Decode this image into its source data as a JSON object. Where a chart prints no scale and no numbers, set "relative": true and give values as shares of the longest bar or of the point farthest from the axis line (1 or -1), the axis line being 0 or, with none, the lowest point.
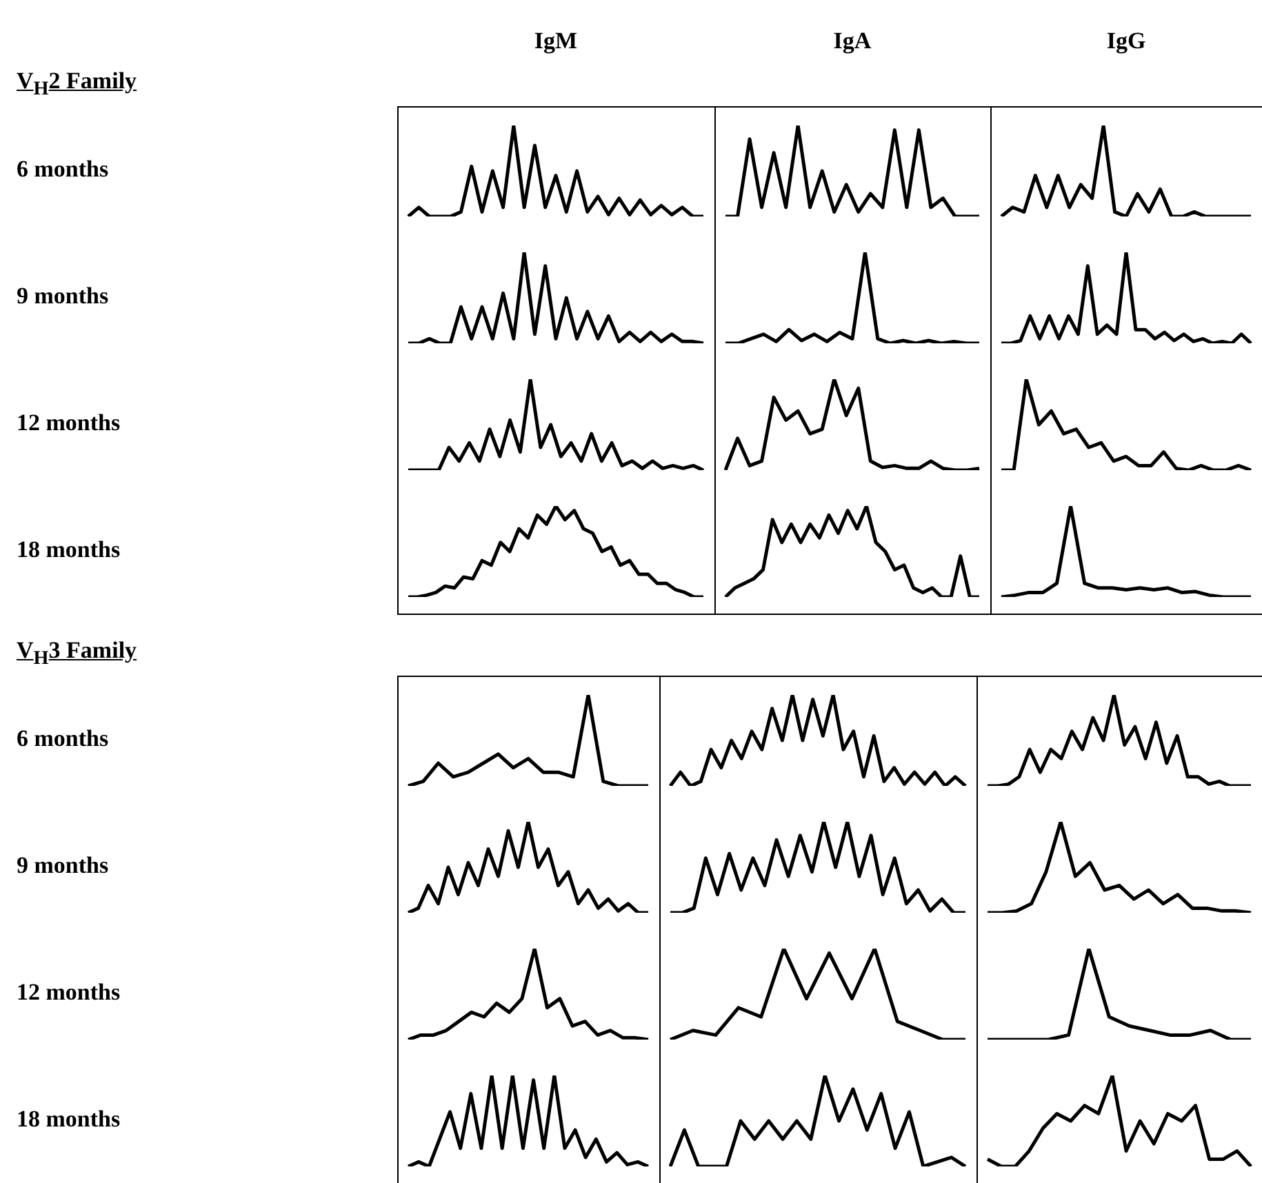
{
  "chart_data": [
    {
      "type": "line",
      "relative": true,
      "title": "IgM",
      "ylabel": "6 months",
      "annotations": [
        "V$_{H}$2 Family"
      ],
      "color": "#000000",
      "categories": [
        null,
        null,
        null,
        null,
        null,
        null,
        null,
        null,
        null,
        null,
        null,
        null,
        null,
        null,
        null,
        null,
        null,
        null,
        null,
        null,
        null,
        null,
        null,
        null,
        null,
        null,
        null,
        null,
        null
      ],
      "values": [
        0,
        0.1,
        0,
        0,
        0,
        0.05,
        0.55,
        0.05,
        0.5,
        0.1,
        1,
        0.1,
        0.78,
        0.1,
        0.45,
        0.05,
        0.5,
        0.05,
        0.22,
        0.02,
        0.2,
        0.02,
        0.18,
        0.02,
        0.12,
        0.02,
        0.1,
        0,
        0
      ]
    },
    {
      "type": "line",
      "relative": true,
      "title": "IgA",
      "color": "#000000",
      "categories": [
        null,
        null,
        null,
        null,
        null,
        null,
        null,
        null,
        null,
        null,
        null,
        null,
        null,
        null,
        null,
        null,
        null,
        null,
        null,
        null,
        null,
        null
      ],
      "values": [
        0,
        0,
        0.85,
        0.1,
        0.7,
        0.1,
        1,
        0.1,
        0.5,
        0.05,
        0.35,
        0.05,
        0.25,
        0.1,
        0.95,
        0.1,
        0.95,
        0.1,
        0.2,
        0,
        0,
        0
      ]
    },
    {
      "type": "line",
      "relative": true,
      "title": "IgG",
      "color": "#000000",
      "categories": [
        null,
        null,
        null,
        null,
        null,
        null,
        null,
        null,
        null,
        null,
        null,
        null,
        null,
        null,
        null,
        null,
        null,
        null,
        null,
        null,
        null,
        null,
        null
      ],
      "values": [
        0,
        0.1,
        0.05,
        0.45,
        0.1,
        0.45,
        0.1,
        0.35,
        0.2,
        1,
        0.05,
        0,
        0.25,
        0.05,
        0.3,
        0,
        0,
        0.05,
        0,
        0,
        0,
        0,
        0
      ]
    },
    {
      "type": "line",
      "relative": true,
      "ylabel": "9 months",
      "color": "#000000",
      "categories": [
        null,
        null,
        null,
        null,
        null,
        null,
        null,
        null,
        null,
        null,
        null,
        null,
        null,
        null,
        null,
        null,
        null,
        null,
        null,
        null,
        null,
        null,
        null,
        null,
        null,
        null,
        null,
        null,
        null
      ],
      "values": [
        0,
        0,
        0.05,
        0,
        0,
        0.4,
        0.05,
        0.4,
        0.05,
        0.55,
        0.05,
        1,
        0.1,
        0.85,
        0.05,
        0.5,
        0.05,
        0.35,
        0.05,
        0.3,
        0.02,
        0.12,
        0.02,
        0.12,
        0.02,
        0.1,
        0.02,
        0.02,
        0
      ]
    },
    {
      "type": "line",
      "relative": true,
      "color": "#000000",
      "categories": [
        null,
        null,
        null,
        null,
        null,
        null,
        null,
        null,
        null,
        null,
        null,
        null,
        null,
        null,
        null,
        null,
        null,
        null,
        null,
        null,
        null
      ],
      "values": [
        0,
        0,
        0.05,
        0.1,
        0.02,
        0.15,
        0.03,
        0.1,
        0.02,
        0.12,
        0.05,
        1,
        0.05,
        0,
        0.03,
        0,
        0.03,
        0,
        0.02,
        0,
        0
      ]
    },
    {
      "type": "line",
      "relative": true,
      "color": "#000000",
      "categories": [
        null,
        null,
        null,
        null,
        null,
        null,
        null,
        null,
        null,
        null,
        null,
        null,
        null,
        null,
        null,
        null,
        null,
        null,
        null,
        null,
        null,
        null,
        null,
        null,
        null,
        null,
        null
      ],
      "values": [
        0,
        0,
        0.03,
        0.3,
        0.05,
        0.3,
        0.05,
        0.3,
        0.1,
        0.85,
        0.1,
        0.2,
        0.1,
        1,
        0.15,
        0.15,
        0.05,
        0.12,
        0.03,
        0.1,
        0.02,
        0.05,
        0,
        0.02,
        0,
        0.1,
        0
      ]
    },
    {
      "type": "line",
      "relative": true,
      "ylabel": "12 months",
      "color": "#000000",
      "categories": [
        null,
        null,
        null,
        null,
        null,
        null,
        null,
        null,
        null,
        null,
        null,
        null,
        null,
        null,
        null,
        null,
        null,
        null,
        null,
        null,
        null,
        null,
        null,
        null,
        null,
        null,
        null,
        null,
        null,
        null
      ],
      "values": [
        0,
        0,
        0,
        0,
        0.25,
        0.1,
        0.3,
        0.1,
        0.45,
        0.15,
        0.55,
        0.2,
        1,
        0.25,
        0.5,
        0.15,
        0.3,
        0.1,
        0.4,
        0.1,
        0.3,
        0.05,
        0.1,
        0.02,
        0.1,
        0.02,
        0.05,
        0.02,
        0.05,
        0
      ]
    },
    {
      "type": "line",
      "relative": true,
      "color": "#000000",
      "categories": [
        null,
        null,
        null,
        null,
        null,
        null,
        null,
        null,
        null,
        null,
        null,
        null,
        null,
        null,
        null,
        null,
        null,
        null,
        null,
        null,
        null,
        null
      ],
      "values": [
        0,
        0.35,
        0.05,
        0.1,
        0.8,
        0.55,
        0.65,
        0.4,
        0.45,
        1,
        0.6,
        0.9,
        0.1,
        0.03,
        0.05,
        0.02,
        0.02,
        0.1,
        0.02,
        0,
        0,
        0.02
      ]
    },
    {
      "type": "line",
      "relative": true,
      "color": "#000000",
      "categories": [
        null,
        null,
        null,
        null,
        null,
        null,
        null,
        null,
        null,
        null,
        null,
        null,
        null,
        null,
        null,
        null,
        null,
        null,
        null,
        null,
        null
      ],
      "values": [
        0,
        0,
        1,
        0.5,
        0.65,
        0.4,
        0.45,
        0.25,
        0.3,
        0.1,
        0.15,
        0.05,
        0.05,
        0.2,
        0.02,
        0,
        0.05,
        0,
        0,
        0.05,
        0
      ]
    },
    {
      "type": "line",
      "relative": true,
      "ylabel": "18 months",
      "color": "#000000",
      "categories": [
        null,
        null,
        null,
        null,
        null,
        null,
        null,
        null,
        null,
        null,
        null,
        null,
        null,
        null,
        null,
        null,
        null,
        null,
        null,
        null,
        null,
        null,
        null,
        null,
        null,
        null,
        null,
        null,
        null,
        null,
        null,
        null,
        null
      ],
      "values": [
        0,
        0,
        0.02,
        0.05,
        0.12,
        0.1,
        0.22,
        0.2,
        0.4,
        0.35,
        0.6,
        0.5,
        0.75,
        0.65,
        0.9,
        0.8,
        1,
        0.85,
        0.95,
        0.75,
        0.7,
        0.5,
        0.55,
        0.35,
        0.4,
        0.25,
        0.25,
        0.15,
        0.15,
        0.08,
        0.05,
        0,
        0
      ]
    },
    {
      "type": "line",
      "relative": true,
      "color": "#000000",
      "categories": [
        null,
        null,
        null,
        null,
        null,
        null,
        null,
        null,
        null,
        null,
        null,
        null,
        null,
        null,
        null,
        null,
        null,
        null,
        null,
        null,
        null,
        null,
        null,
        null,
        null,
        null,
        null,
        null
      ],
      "values": [
        0,
        0.1,
        0.15,
        0.2,
        0.3,
        0.85,
        0.6,
        0.8,
        0.6,
        0.8,
        0.65,
        0.9,
        0.7,
        0.95,
        0.75,
        1,
        0.6,
        0.5,
        0.3,
        0.35,
        0.1,
        0.05,
        0.1,
        0,
        0,
        0.45,
        0,
        0
      ]
    },
    {
      "type": "line",
      "relative": true,
      "color": "#000000",
      "categories": [
        null,
        null,
        null,
        null,
        null,
        null,
        null,
        null,
        null,
        null,
        null,
        null,
        null,
        null,
        null,
        null,
        null,
        null,
        null
      ],
      "values": [
        0,
        0.02,
        0.05,
        0.05,
        0.15,
        1,
        0.15,
        0.1,
        0.1,
        0.08,
        0.1,
        0.08,
        0.1,
        0.05,
        0.06,
        0.02,
        0,
        0,
        0
      ]
    },
    {
      "type": "line",
      "relative": true,
      "ylabel": "6 months",
      "annotations": [
        "V$_{H}$3 Family"
      ],
      "color": "#000000",
      "categories": [
        null,
        null,
        null,
        null,
        null,
        null,
        null,
        null,
        null,
        null,
        null,
        null,
        null,
        null,
        null,
        null,
        null
      ],
      "values": [
        0,
        0.05,
        0.25,
        0.1,
        0.15,
        0.25,
        0.35,
        0.2,
        0.3,
        0.15,
        0.15,
        0.1,
        1,
        0.05,
        0,
        0,
        0
      ]
    },
    {
      "type": "line",
      "relative": true,
      "color": "#000000",
      "categories": [
        null,
        null,
        null,
        null,
        null,
        null,
        null,
        null,
        null,
        null,
        null,
        null,
        null,
        null,
        null,
        null,
        null,
        null,
        null,
        null,
        null,
        null,
        null,
        null,
        null,
        null,
        null,
        null,
        null,
        null
      ],
      "values": [
        0,
        0.15,
        0,
        0.05,
        0.4,
        0.2,
        0.5,
        0.3,
        0.6,
        0.4,
        0.85,
        0.5,
        1,
        0.5,
        0.95,
        0.55,
        1,
        0.4,
        0.6,
        0.1,
        0.55,
        0.05,
        0.2,
        0.02,
        0.15,
        0.02,
        0.15,
        0,
        0.1,
        0
      ]
    },
    {
      "type": "line",
      "relative": true,
      "color": "#000000",
      "categories": [
        null,
        null,
        null,
        null,
        null,
        null,
        null,
        null,
        null,
        null,
        null,
        null,
        null,
        null,
        null,
        null,
        null,
        null,
        null,
        null,
        null,
        null,
        null,
        null,
        null,
        null
      ],
      "values": [
        0,
        0,
        0.02,
        0.1,
        0.4,
        0.15,
        0.4,
        0.3,
        0.6,
        0.4,
        0.75,
        0.5,
        1,
        0.45,
        0.65,
        0.3,
        0.7,
        0.25,
        0.55,
        0.1,
        0.1,
        0.02,
        0.05,
        0,
        0,
        0
      ]
    },
    {
      "type": "line",
      "relative": true,
      "ylabel": "9 months",
      "color": "#000000",
      "categories": [
        null,
        null,
        null,
        null,
        null,
        null,
        null,
        null,
        null,
        null,
        null,
        null,
        null,
        null,
        null,
        null,
        null,
        null,
        null,
        null,
        null,
        null,
        null,
        null,
        null
      ],
      "values": [
        0,
        0.05,
        0.3,
        0.1,
        0.5,
        0.2,
        0.55,
        0.3,
        0.7,
        0.4,
        0.9,
        0.5,
        1,
        0.5,
        0.7,
        0.3,
        0.45,
        0.1,
        0.25,
        0.05,
        0.15,
        0.02,
        0.1,
        0,
        0
      ]
    },
    {
      "type": "line",
      "relative": true,
      "color": "#000000",
      "categories": [
        null,
        null,
        null,
        null,
        null,
        null,
        null,
        null,
        null,
        null,
        null,
        null,
        null,
        null,
        null,
        null,
        null,
        null,
        null,
        null,
        null,
        null,
        null,
        null,
        null,
        null
      ],
      "values": [
        0,
        0,
        0.05,
        0.6,
        0.2,
        0.65,
        0.25,
        0.6,
        0.3,
        0.8,
        0.4,
        0.85,
        0.45,
        1,
        0.5,
        1,
        0.4,
        0.85,
        0.2,
        0.6,
        0.1,
        0.25,
        0.02,
        0.15,
        0,
        0
      ]
    },
    {
      "type": "line",
      "relative": true,
      "color": "#000000",
      "categories": [
        null,
        null,
        null,
        null,
        null,
        null,
        null,
        null,
        null,
        null,
        null,
        null,
        null,
        null,
        null,
        null,
        null,
        null,
        null
      ],
      "values": [
        0,
        0,
        0.02,
        0.1,
        0.45,
        1,
        0.4,
        0.55,
        0.25,
        0.3,
        0.15,
        0.25,
        0.1,
        0.2,
        0.05,
        0.05,
        0.02,
        0.02,
        0
      ]
    },
    {
      "type": "line",
      "relative": true,
      "ylabel": "12 months",
      "color": "#000000",
      "categories": [
        null,
        null,
        null,
        null,
        null,
        null,
        null,
        null,
        null,
        null,
        null,
        null,
        null,
        null,
        null,
        null,
        null,
        null,
        null,
        null
      ],
      "values": [
        0,
        0.05,
        0.05,
        0.1,
        0.2,
        0.3,
        0.25,
        0.4,
        0.3,
        0.45,
        1,
        0.35,
        0.45,
        0.15,
        0.2,
        0.05,
        0.1,
        0.02,
        0.02,
        0
      ]
    },
    {
      "type": "line",
      "relative": true,
      "color": "#000000",
      "categories": [
        null,
        null,
        null,
        null,
        null,
        null,
        null,
        null,
        null,
        null,
        null,
        null,
        null,
        null
      ],
      "values": [
        0,
        0.1,
        0.05,
        0.35,
        0.25,
        1,
        0.45,
        0.95,
        0.45,
        1,
        0.2,
        0.1,
        0,
        0
      ]
    },
    {
      "type": "line",
      "relative": true,
      "color": "#000000",
      "categories": [
        null,
        null,
        null,
        null,
        null,
        null,
        null,
        null,
        null,
        null,
        null,
        null,
        null,
        null
      ],
      "values": [
        0,
        0,
        0,
        0,
        0.05,
        1,
        0.25,
        0.15,
        0.1,
        0.05,
        0.05,
        0.1,
        0,
        0
      ]
    },
    {
      "type": "line",
      "relative": true,
      "ylabel": "18 months",
      "color": "#000000",
      "categories": [
        null,
        null,
        null,
        null,
        null,
        null,
        null,
        null,
        null,
        null,
        null,
        null,
        null,
        null,
        null,
        null,
        null,
        null,
        null,
        null,
        null,
        null,
        null,
        null
      ],
      "values": [
        0,
        0.05,
        0,
        0.3,
        0.6,
        0.2,
        0.8,
        0.2,
        1,
        0.2,
        1,
        0.2,
        0.95,
        0.2,
        1,
        0.2,
        0.4,
        0.1,
        0.3,
        0.05,
        0.15,
        0.02,
        0.05,
        0
      ]
    },
    {
      "type": "line",
      "relative": true,
      "color": "#000000",
      "categories": [
        null,
        null,
        null,
        null,
        null,
        null,
        null,
        null,
        null,
        null,
        null,
        null,
        null,
        null,
        null,
        null,
        null,
        null,
        null,
        null,
        null,
        null
      ],
      "values": [
        0,
        0.4,
        0,
        0,
        0,
        0.5,
        0.3,
        0.5,
        0.3,
        0.5,
        0.3,
        1,
        0.5,
        0.85,
        0.4,
        0.8,
        0.2,
        0.6,
        0,
        0.05,
        0.1,
        0
      ]
    },
    {
      "type": "line",
      "relative": true,
      "color": "#000000",
      "categories": [
        null,
        null,
        null,
        null,
        null,
        null,
        null,
        null,
        null,
        null,
        null,
        null,
        null,
        null,
        null,
        null,
        null,
        null,
        null,
        null
      ],
      "values": [
        0.08,
        0,
        0,
        0.17,
        0.42,
        0.58,
        0.5,
        0.67,
        0.58,
        1,
        0.17,
        0.5,
        0.25,
        0.58,
        0.5,
        0.67,
        0.08,
        0.08,
        0.17,
        0
      ]
    }
  ]
}
